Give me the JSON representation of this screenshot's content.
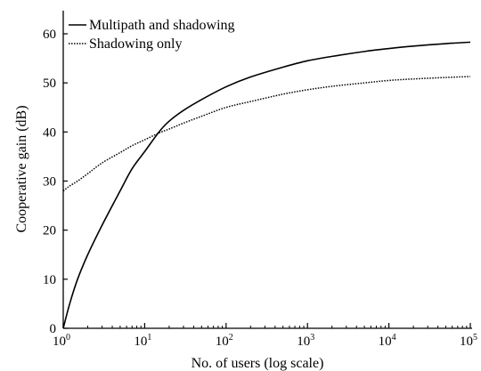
{
  "chart_data": {
    "type": "line",
    "title": "",
    "xlabel": "No. of users (log scale)",
    "ylabel": "Cooperative gain (dB)",
    "xscale": "log",
    "xlim": [
      1,
      100000
    ],
    "ylim": [
      0,
      65
    ],
    "grid": false,
    "legend_position": "top-left",
    "x_ticks": [
      {
        "base": "10",
        "exp": "0"
      },
      {
        "base": "10",
        "exp": "1"
      },
      {
        "base": "10",
        "exp": "2"
      },
      {
        "base": "10",
        "exp": "3"
      },
      {
        "base": "10",
        "exp": "4"
      },
      {
        "base": "10",
        "exp": "5"
      }
    ],
    "y_ticks": [
      "0",
      "10",
      "20",
      "30",
      "40",
      "50",
      "60"
    ],
    "x": [
      1,
      1.2,
      1.5,
      2,
      3,
      5,
      7,
      10,
      15,
      20,
      30,
      50,
      100,
      200,
      500,
      1000,
      2000,
      5000,
      10000,
      20000,
      50000,
      100000
    ],
    "series": [
      {
        "name": "Multipath and shadowing",
        "style": "solid",
        "color": "#000000",
        "values": [
          0,
          5,
          10,
          15,
          21,
          28,
          32.5,
          36,
          40,
          42.2,
          44.4,
          46.6,
          49.2,
          51.2,
          53.2,
          54.5,
          55.4,
          56.4,
          57,
          57.5,
          58,
          58.3
        ]
      },
      {
        "name": "Shadowing only",
        "style": "dotted",
        "color": "#000000",
        "values": [
          28,
          29,
          30,
          31.5,
          33.7,
          35.8,
          37.2,
          38.4,
          39.8,
          40.6,
          41.8,
          43.2,
          45,
          46.2,
          47.7,
          48.6,
          49.3,
          50,
          50.5,
          50.8,
          51.1,
          51.3
        ]
      }
    ]
  }
}
